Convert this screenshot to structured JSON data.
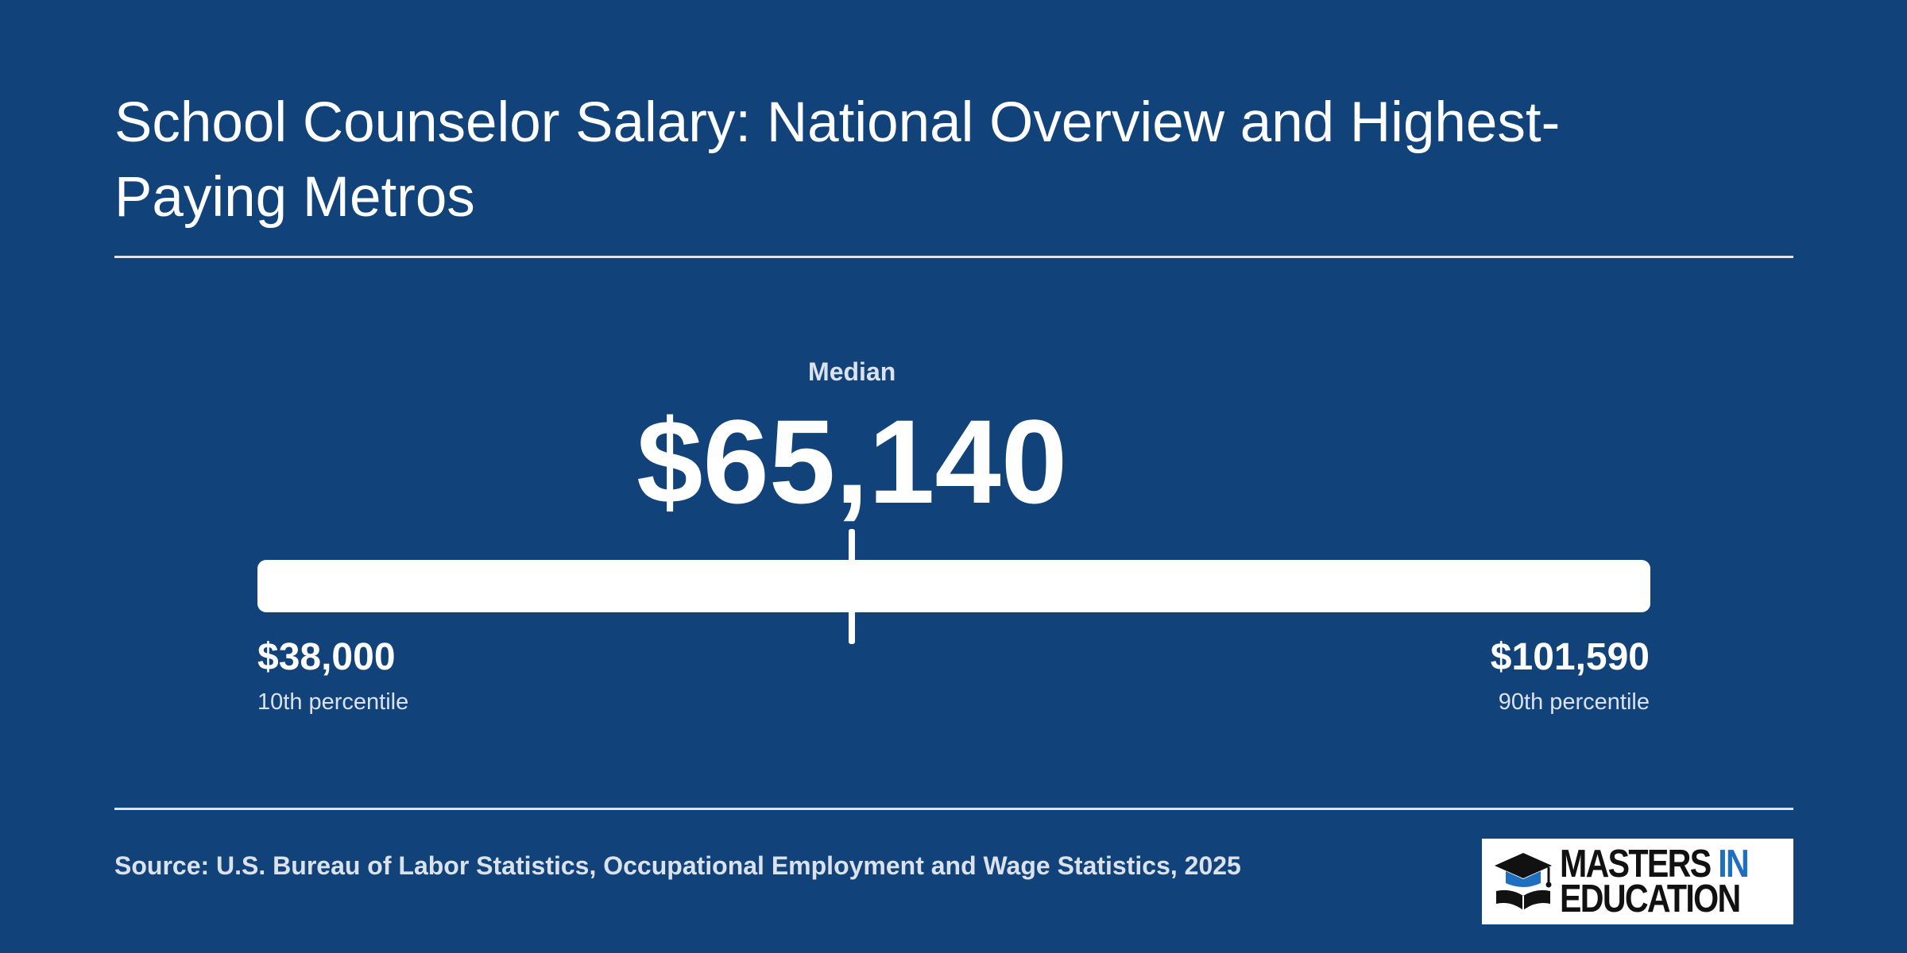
{
  "chart_data": {
    "type": "range",
    "title": "School Counselor Salary: National Overview and Highest-Paying Metros",
    "min": 38000,
    "median": 65140,
    "max": 101590,
    "labels": {
      "median_caption": "Median",
      "median_value": "$65,140",
      "low_value": "$38,000",
      "low_caption": "10th percentile",
      "high_value": "$101,590",
      "high_caption": "90th percentile"
    },
    "source": "Source: U.S. Bureau of Labor Statistics, Occupational Employment and Wage Statistics, 2025"
  },
  "logo": {
    "word1": "MASTERS",
    "word2": "IN",
    "word3": "EDUCATION"
  },
  "colors": {
    "background": "#11437a",
    "bar": "#ffffff",
    "logo_accent": "#1f6fc0"
  },
  "icons": {
    "logo_mark": "graduation-cap-book-icon"
  }
}
